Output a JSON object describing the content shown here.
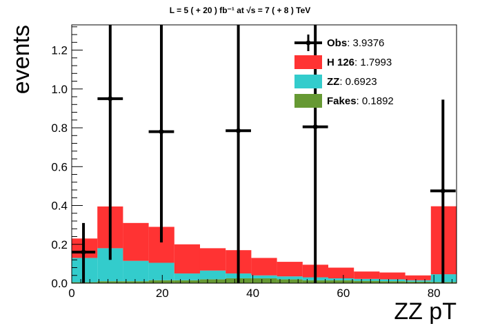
{
  "chart_data": {
    "type": "histogram-stack",
    "title": "L = 5 ( + 20 ) fb⁻¹ at √s = 7 ( + 8 ) TeV",
    "xlabel": "ZZ pT",
    "ylabel": "events",
    "xlim": [
      0,
      85
    ],
    "ylim": [
      0,
      1.33
    ],
    "x_ticks": [
      0,
      20,
      40,
      60,
      80
    ],
    "y_ticks": [
      0.0,
      0.2,
      0.4,
      0.6,
      0.8,
      1.0,
      1.2
    ],
    "bin_edges": [
      0,
      5.667,
      11.333,
      17,
      22.667,
      28.333,
      34,
      39.667,
      45.333,
      51,
      56.667,
      62.333,
      68,
      73.667,
      79.333,
      85
    ],
    "series": [
      {
        "name": "Fakes",
        "value_label": "0.1892",
        "color": "#669933",
        "values": [
          0.005,
          0.01,
          0.01,
          0.015,
          0.015,
          0.02,
          0.025,
          0.025,
          0.02,
          0.015,
          0.015,
          0.012,
          0.01,
          0.008,
          0.006
        ]
      },
      {
        "name": "ZZ",
        "value_label": "0.6923",
        "color": "#33cccc",
        "values": [
          0.125,
          0.17,
          0.105,
          0.09,
          0.035,
          0.045,
          0.025,
          0.015,
          0.015,
          0.015,
          0.01,
          0.01,
          0.01,
          0.007,
          0.04
        ]
      },
      {
        "name": "H 126",
        "value_label": "1.7993",
        "color": "#ff3333",
        "values": [
          0.1,
          0.215,
          0.195,
          0.185,
          0.15,
          0.115,
          0.12,
          0.09,
          0.075,
          0.065,
          0.055,
          0.038,
          0.035,
          0.025,
          0.35
        ]
      }
    ],
    "observed": {
      "name": "Obs",
      "value_label": "3.9376",
      "color": "#000000",
      "points": [
        {
          "x": 2.6,
          "y": 0.16,
          "yerr_low": 0.16,
          "yerr_high": 0.15,
          "xerr": 2.6
        },
        {
          "x": 8.5,
          "y": 0.95,
          "yerr_low": 0.83,
          "yerr_high": 0.5,
          "xerr": 2.8
        },
        {
          "x": 19.8,
          "y": 0.78,
          "yerr_low": 0.57,
          "yerr_high": 0.6,
          "xerr": 2.8
        },
        {
          "x": 36.8,
          "y": 0.785,
          "yerr_low": 0.785,
          "yerr_high": 0.6,
          "xerr": 2.8
        },
        {
          "x": 53.8,
          "y": 0.805,
          "yerr_low": 0.805,
          "yerr_high": 0.6,
          "xerr": 2.8
        },
        {
          "x": 82.0,
          "y": 0.475,
          "yerr_low": 0.475,
          "yerr_high": 0.47,
          "xerr": 2.8
        }
      ]
    },
    "legend": {
      "placement": "top-right",
      "entries": [
        {
          "name": "Obs",
          "value_label": "3.9376",
          "kind": "marker"
        },
        {
          "name": "H 126",
          "value_label": "1.7993",
          "kind": "box",
          "color": "#ff3333"
        },
        {
          "name": "ZZ",
          "value_label": "0.6923",
          "kind": "box",
          "color": "#33cccc"
        },
        {
          "name": "Fakes",
          "value_label": "0.1892",
          "kind": "box",
          "color": "#669933"
        }
      ]
    },
    "grid": false
  }
}
